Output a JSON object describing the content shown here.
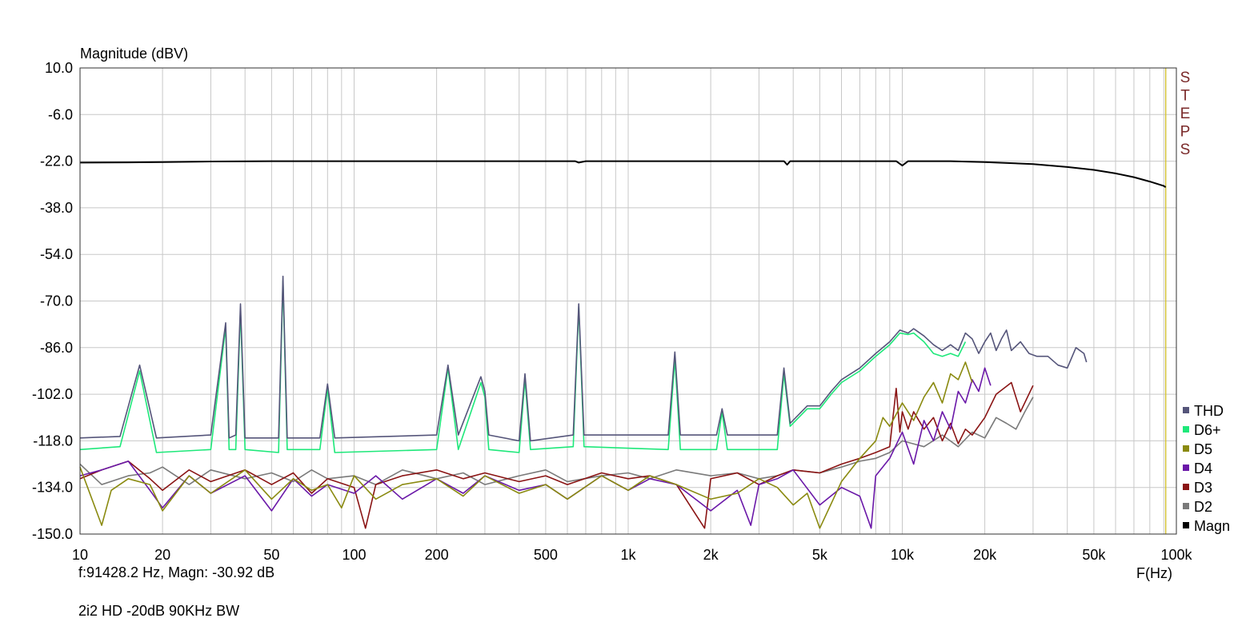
{
  "chart_data": {
    "type": "line",
    "ylabel": "Magnitude (dBV)",
    "xlabel": "F(Hz)",
    "x_scale": "log",
    "xlim": [
      10,
      100000
    ],
    "ylim": [
      -150,
      10
    ],
    "y_ticks": [
      "10.0",
      "-6.0",
      "-22.0",
      "-38.0",
      "-54.0",
      "-70.0",
      "-86.0",
      "-102.0",
      "-118.0",
      "-134.0",
      "-150.0"
    ],
    "x_ticks": [
      {
        "v": 10,
        "label": "10"
      },
      {
        "v": 20,
        "label": "20"
      },
      {
        "v": 50,
        "label": "50"
      },
      {
        "v": 100,
        "label": "100"
      },
      {
        "v": 200,
        "label": "200"
      },
      {
        "v": 500,
        "label": "500"
      },
      {
        "v": 1000,
        "label": "1k"
      },
      {
        "v": 2000,
        "label": "2k"
      },
      {
        "v": 5000,
        "label": "5k"
      },
      {
        "v": 10000,
        "label": "10k"
      },
      {
        "v": 20000,
        "label": "20k"
      },
      {
        "v": 50000,
        "label": "50k"
      },
      {
        "v": 100000,
        "label": "100k"
      }
    ],
    "grid": true,
    "legend_position": "bottom-right",
    "side_label": "STEPS",
    "cursor_x": 91428.2,
    "series": [
      {
        "name": "Magn",
        "color": "#000000",
        "x": [
          10,
          15,
          20,
          30,
          50,
          100,
          200,
          500,
          640,
          660,
          700,
          1000,
          2000,
          3000,
          3700,
          3800,
          3900,
          5000,
          9500,
          10000,
          10500,
          15000,
          20000,
          30000,
          40000,
          50000,
          60000,
          70000,
          80000,
          90000,
          91428
        ],
        "y": [
          -22.5,
          -22.4,
          -22.3,
          -22.1,
          -22,
          -22,
          -22,
          -22,
          -22,
          -22.5,
          -22,
          -22,
          -22,
          -22,
          -22,
          -23.2,
          -22,
          -22,
          -22,
          -23.5,
          -22,
          -22,
          -22.3,
          -23,
          -24,
          -25,
          -26.2,
          -27.5,
          -29,
          -30.5,
          -30.92
        ]
      },
      {
        "name": "THD",
        "color": "#55557a",
        "x": [
          10,
          14,
          16.5,
          19,
          30,
          34,
          35,
          37,
          38.5,
          40,
          53,
          55,
          57,
          75,
          80,
          85,
          200,
          220,
          240,
          290,
          300,
          310,
          400,
          420,
          440,
          630,
          660,
          690,
          1400,
          1480,
          1550,
          2100,
          2200,
          2300,
          3500,
          3700,
          3900,
          4500,
          5000,
          5500,
          6000,
          7000,
          8000,
          9000,
          9800,
          10500,
          11000,
          12000,
          13000,
          14000,
          15000,
          16000,
          17000,
          18000,
          19000,
          20000,
          21000,
          22000,
          23000,
          24000,
          25000,
          27000,
          29000,
          31000,
          34000,
          37000,
          40000,
          43000,
          46000,
          47000
        ],
        "y": [
          -117,
          -116.5,
          -92,
          -117,
          -116,
          -77.5,
          -117,
          -116,
          -71,
          -117,
          -117,
          -61.5,
          -117,
          -117,
          -98.5,
          -117,
          -116,
          -92,
          -116,
          -96,
          -101,
          -116,
          -118,
          -95,
          -118,
          -116,
          -71,
          -116,
          -116,
          -87.5,
          -116,
          -116,
          -107,
          -116,
          -116,
          -93,
          -112,
          -106,
          -106,
          -101,
          -97,
          -93,
          -88,
          -84,
          -80,
          -81,
          -79.5,
          -82,
          -85,
          -87,
          -85,
          -87,
          -81,
          -83,
          -88,
          -84,
          -81,
          -87,
          -83,
          -80,
          -87,
          -84,
          -88,
          -89,
          -89,
          -92,
          -93,
          -86,
          -88,
          -91
        ]
      },
      {
        "name": "D6+",
        "color": "#1ee87a",
        "x": [
          10,
          14,
          16.5,
          19,
          30,
          34,
          35,
          37,
          38.5,
          40,
          53,
          55,
          57,
          75,
          80,
          85,
          200,
          220,
          240,
          290,
          300,
          310,
          400,
          420,
          440,
          630,
          660,
          690,
          1400,
          1480,
          1550,
          2100,
          2200,
          2300,
          3500,
          3700,
          3900,
          4500,
          5000,
          5500,
          6000,
          7000,
          8000,
          9000,
          9800,
          10500,
          11000,
          12000,
          13000,
          14000,
          15000,
          16000,
          17000
        ],
        "y": [
          -121,
          -120,
          -94,
          -122,
          -121,
          -79,
          -121,
          -121,
          -73,
          -121,
          -122,
          -63,
          -121,
          -121,
          -100,
          -122,
          -121,
          -93,
          -121,
          -98,
          -103,
          -121,
          -122,
          -97,
          -121,
          -120,
          -72,
          -120,
          -121,
          -90,
          -121,
          -121,
          -108,
          -121,
          -121,
          -95,
          -113,
          -107,
          -107,
          -102,
          -98,
          -94,
          -89,
          -85,
          -81,
          -81.5,
          -81,
          -84,
          -88,
          -89,
          -88,
          -89,
          -84
        ]
      },
      {
        "name": "D5",
        "color": "#8a8a10",
        "x": [
          10,
          12,
          13,
          15,
          18,
          20,
          25,
          30,
          40,
          50,
          60,
          70,
          80,
          90,
          100,
          120,
          150,
          200,
          250,
          300,
          400,
          500,
          600,
          800,
          1000,
          1200,
          1500,
          2000,
          2500,
          3000,
          3500,
          4000,
          4500,
          5000,
          6000,
          7000,
          8000,
          8500,
          9000,
          10000,
          11000,
          12000,
          13000,
          14000,
          15000,
          16000,
          17000,
          18000
        ],
        "y": [
          -127,
          -147,
          -135,
          -131,
          -133,
          -142,
          -130,
          -136,
          -128,
          -138,
          -131,
          -135,
          -133,
          -141,
          -130,
          -138,
          -133,
          -131,
          -137,
          -130,
          -136,
          -133,
          -138,
          -130,
          -135,
          -130,
          -133,
          -138,
          -136,
          -131,
          -134,
          -140,
          -136,
          -148,
          -132,
          -124,
          -118,
          -110,
          -113,
          -105,
          -111,
          -103,
          -98,
          -105,
          -95,
          -97,
          -91,
          -98
        ]
      },
      {
        "name": "D4",
        "color": "#6a18a8",
        "x": [
          10,
          12,
          15,
          18,
          20,
          25,
          30,
          40,
          50,
          60,
          70,
          80,
          100,
          120,
          150,
          200,
          250,
          300,
          400,
          500,
          600,
          800,
          1000,
          1200,
          1500,
          2000,
          2500,
          2800,
          3000,
          3500,
          4000,
          5000,
          6000,
          7000,
          7700,
          8000,
          9000,
          10000,
          11000,
          12000,
          13000,
          14000,
          15000,
          16000,
          17000,
          18000,
          19000,
          20000,
          21000
        ],
        "y": [
          -130,
          -128,
          -125,
          -135,
          -141,
          -130,
          -136,
          -130,
          -142,
          -131,
          -137,
          -133,
          -136,
          -130,
          -138,
          -131,
          -136,
          -130,
          -135,
          -133,
          -138,
          -130,
          -135,
          -131,
          -133,
          -142,
          -135,
          -147,
          -133,
          -131,
          -128,
          -140,
          -134,
          -137,
          -148,
          -130,
          -124,
          -115,
          -126,
          -111,
          -118,
          -108,
          -114,
          -101,
          -105,
          -97,
          -101,
          -93,
          -99
        ]
      },
      {
        "name": "D3",
        "color": "#8a1414",
        "x": [
          10,
          12,
          15,
          18,
          20,
          25,
          30,
          40,
          50,
          60,
          70,
          80,
          100,
          110,
          120,
          150,
          200,
          250,
          300,
          400,
          500,
          600,
          800,
          1000,
          1200,
          1500,
          1900,
          2000,
          2500,
          3000,
          3500,
          4000,
          5000,
          6000,
          7000,
          8000,
          9000,
          9500,
          9800,
          10000,
          10500,
          11000,
          12000,
          13000,
          14000,
          15000,
          16000,
          17000,
          18000,
          20000,
          22000,
          25000,
          27000,
          30000
        ],
        "y": [
          -131,
          -128,
          -125,
          -131,
          -135,
          -128,
          -132,
          -128,
          -133,
          -129,
          -136,
          -131,
          -134,
          -148,
          -133,
          -130,
          -128,
          -131,
          -129,
          -132,
          -130,
          -133,
          -129,
          -131,
          -130,
          -133,
          -148,
          -131,
          -129,
          -133,
          -130,
          -128,
          -129,
          -126,
          -124,
          -122,
          -120,
          -100,
          -115,
          -108,
          -114,
          -108,
          -114,
          -110,
          -118,
          -112,
          -119,
          -114,
          -116,
          -110,
          -102,
          -98,
          -108,
          -99
        ]
      },
      {
        "name": "D2",
        "color": "#7a7a7a",
        "x": [
          10,
          12,
          15,
          18,
          20,
          25,
          30,
          40,
          50,
          60,
          70,
          80,
          100,
          120,
          150,
          200,
          250,
          300,
          400,
          500,
          600,
          800,
          1000,
          1200,
          1500,
          2000,
          2500,
          3000,
          3500,
          4000,
          5000,
          6000,
          7000,
          8000,
          9000,
          10000,
          12000,
          14000,
          16000,
          18000,
          20000,
          22000,
          24000,
          26000,
          28000,
          30000
        ],
        "y": [
          -126,
          -133,
          -130,
          -129,
          -127,
          -133,
          -128,
          -131,
          -129,
          -132,
          -128,
          -131,
          -130,
          -133,
          -128,
          -131,
          -129,
          -133,
          -130,
          -128,
          -132,
          -130,
          -129,
          -131,
          -128,
          -130,
          -129,
          -131,
          -130,
          -128,
          -129,
          -127,
          -125,
          -124,
          -122,
          -118,
          -120,
          -116,
          -120,
          -115,
          -117,
          -110,
          -112,
          -114,
          -108,
          -103
        ]
      }
    ]
  },
  "readout": "f:91428.2 Hz, Magn: -30.92 dB",
  "caption": "2i2 HD -20dB 90KHz BW"
}
